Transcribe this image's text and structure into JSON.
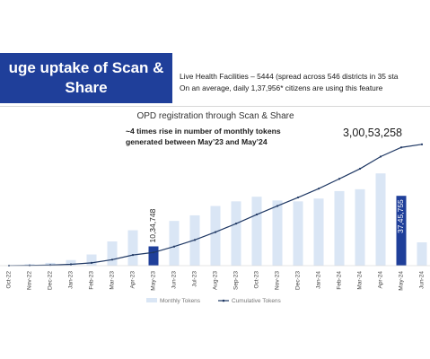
{
  "header": {
    "title": "uge uptake of Scan &\nShare",
    "info_line1": "Live Health Facilities – 5444 (spread across 546 districts in 35 sta",
    "info_line2": "On an average, daily 1,37,956* citizens are using this feature"
  },
  "chart_data": {
    "type": "bar",
    "title": "OPD registration through Scan & Share",
    "annotation": "~4 times rise in number of monthly tokens\ngenerated between May’23 and May’24",
    "categories": [
      "Oct-22",
      "Nov-22",
      "Dec-22",
      "Jan-23",
      "Feb-23",
      "Mar-23",
      "Apr-23",
      "May-23",
      "Jun-23",
      "Jul-23",
      "Aug-23",
      "Sep-23",
      "Oct-23",
      "Nov-23",
      "Dec-23",
      "Jan-24",
      "Feb-24",
      "Mar-24",
      "Apr-24",
      "May-24",
      "Jun-24"
    ],
    "series": [
      {
        "name": "Monthly Tokens",
        "type": "bar",
        "color": "#dae6f5",
        "values": [
          20000,
          80000,
          150000,
          300000,
          600000,
          1300000,
          1900000,
          1034748,
          2400000,
          2700000,
          3200000,
          3450000,
          3700000,
          3500000,
          3450000,
          3600000,
          4000000,
          4100000,
          4950000,
          3745755,
          1250000
        ]
      },
      {
        "name": "Cumulative Tokens",
        "type": "line",
        "color": "#1f3864",
        "values": [
          20000,
          100000,
          250000,
          550000,
          1150000,
          2450000,
          4350000,
          5384748,
          7780000,
          10480000,
          13680000,
          17130000,
          20830000,
          24330000,
          27780000,
          31380000,
          35380000,
          39480000,
          44430000,
          48175755,
          49425755
        ]
      }
    ],
    "highlight_color": "#1f3f9a",
    "highlights": [
      {
        "category": "May-23",
        "label": "10,34,748"
      },
      {
        "category": "May-24",
        "label": "37,45,755"
      }
    ],
    "callout": "3,00,53,258",
    "legend": "bottom"
  }
}
